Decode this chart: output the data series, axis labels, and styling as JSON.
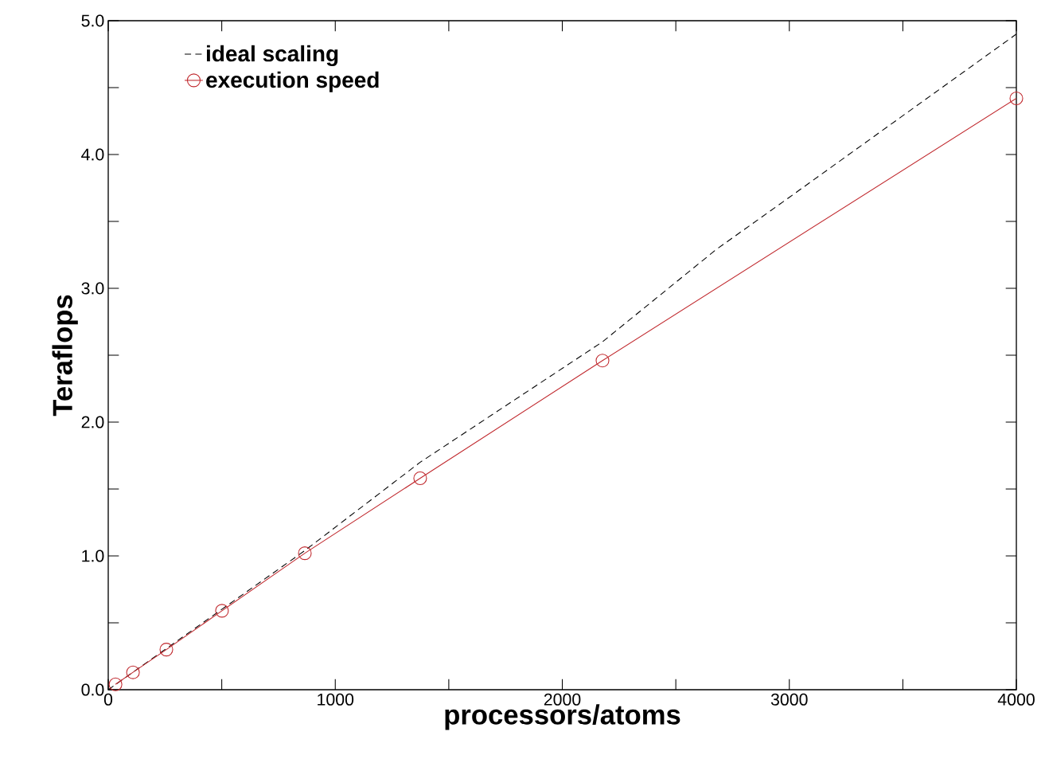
{
  "chart_data": {
    "type": "line",
    "xlabel": "processors/atoms",
    "ylabel": "Teraflops",
    "xlim": [
      0,
      4000
    ],
    "ylim": [
      0,
      5
    ],
    "xticks": [
      0,
      {
        "value": 500,
        "label": null
      },
      1000,
      {
        "value": 1500,
        "label": null
      },
      2000,
      {
        "value": 2500,
        "label": null
      },
      3000,
      {
        "value": 3500,
        "label": null
      },
      4000
    ],
    "yticks": [
      {
        "value": 0,
        "label": "0.0"
      },
      {
        "value": 0.5,
        "label": null
      },
      {
        "value": 1,
        "label": "1.0"
      },
      {
        "value": 1.5,
        "label": null
      },
      {
        "value": 2,
        "label": "2.0"
      },
      {
        "value": 2.5,
        "label": null
      },
      {
        "value": 3,
        "label": "3.0"
      },
      {
        "value": 3.5,
        "label": null
      },
      {
        "value": 4,
        "label": "4.0"
      },
      {
        "value": 4.5,
        "label": null
      },
      {
        "value": 5,
        "label": "5.0"
      }
    ],
    "grid": false,
    "legend": "top left",
    "series": [
      {
        "name": "ideal scaling",
        "color": "#000000",
        "line_style": "dashed",
        "marker": "none",
        "x": [
          0,
          866,
          1374,
          2177,
          2678,
          3000,
          4000
        ],
        "values": [
          0,
          1.04,
          1.7,
          2.6,
          3.29,
          3.68,
          4.9
        ]
      },
      {
        "name": "execution speed",
        "color": "#c0282d",
        "line_style": "solid",
        "marker": "circle",
        "x": [
          32,
          109,
          256,
          501,
          866,
          1374,
          2177,
          4000
        ],
        "values": [
          0.04,
          0.13,
          0.3,
          0.59,
          1.02,
          1.58,
          2.46,
          4.42
        ]
      }
    ]
  }
}
